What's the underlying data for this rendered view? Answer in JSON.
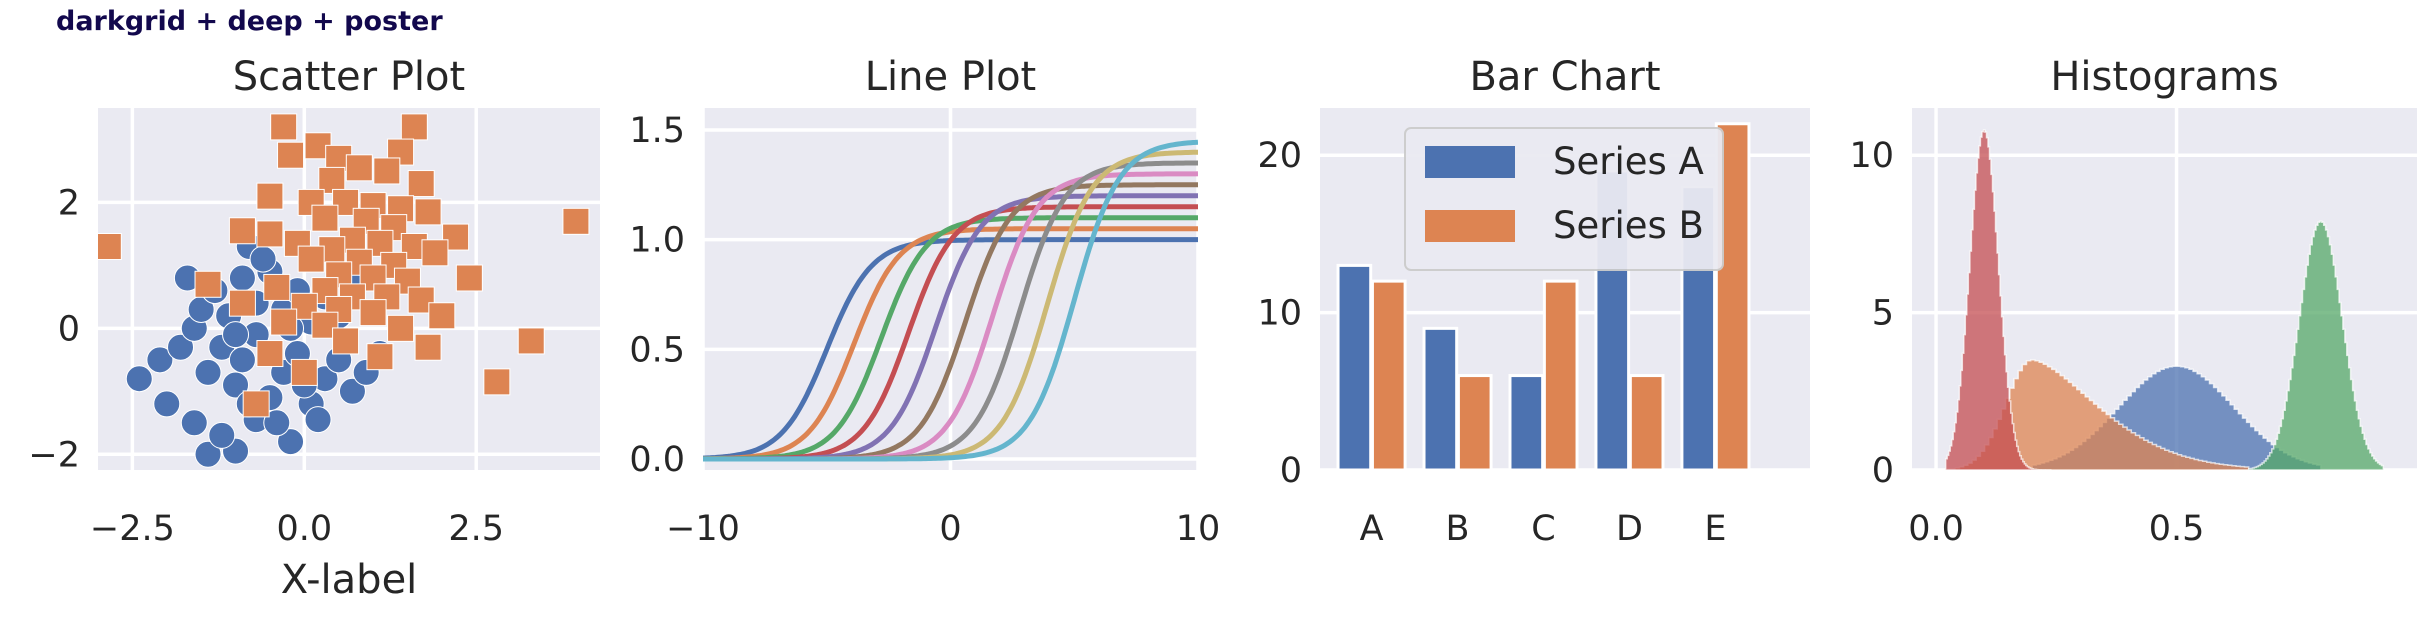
{
  "figure_title": "darkgrid + deep + poster",
  "colors": {
    "background": "#eaeaf2",
    "grid": "#ffffff",
    "blue": "#4c72b0",
    "orange": "#dd8452",
    "green": "#55a868",
    "red": "#c44e52",
    "purple": "#8172b3",
    "brown": "#937860",
    "pink": "#da8bc3",
    "gray": "#8c8c8c",
    "olive": "#ccb974",
    "cyan": "#64b5cd"
  },
  "chart_data": [
    {
      "type": "scatter",
      "title": "Scatter Plot",
      "xlabel": "X-label",
      "ylabel": "",
      "xlim": [
        -3.0,
        4.3
      ],
      "ylim": [
        -2.25,
        3.5
      ],
      "xticks": [
        -2.5,
        0.0,
        2.5
      ],
      "xtick_labels": [
        "−2.5",
        "0.0",
        "2.5"
      ],
      "yticks": [
        -2,
        0,
        2
      ],
      "ytick_labels": [
        "−2",
        "0",
        "2"
      ],
      "grid": true,
      "series": [
        {
          "marker": "circle",
          "color": "blue",
          "points": [
            [
              -1.4,
              -2.0
            ],
            [
              -1.0,
              -1.95
            ],
            [
              -0.2,
              -1.8
            ],
            [
              -1.2,
              -1.7
            ],
            [
              -1.6,
              -1.5
            ],
            [
              -0.7,
              -1.45
            ],
            [
              -2.4,
              -0.8
            ],
            [
              -2.0,
              -1.2
            ],
            [
              -2.1,
              -0.5
            ],
            [
              -1.8,
              -0.3
            ],
            [
              -1.6,
              0.0
            ],
            [
              -1.4,
              -0.7
            ],
            [
              -1.2,
              -0.3
            ],
            [
              -1.0,
              -0.9
            ],
            [
              -0.9,
              -0.5
            ],
            [
              -0.7,
              -0.1
            ],
            [
              -0.5,
              -1.1
            ],
            [
              -0.3,
              -0.7
            ],
            [
              -0.1,
              -0.4
            ],
            [
              0.1,
              -1.2
            ],
            [
              0.3,
              -0.8
            ],
            [
              0.5,
              -0.5
            ],
            [
              0.7,
              -1.0
            ],
            [
              0.9,
              -0.7
            ],
            [
              1.1,
              -0.4
            ],
            [
              -1.5,
              0.3
            ],
            [
              -1.3,
              0.6
            ],
            [
              -1.1,
              0.2
            ],
            [
              -0.9,
              0.8
            ],
            [
              -0.7,
              0.4
            ],
            [
              -0.5,
              0.9
            ],
            [
              -0.3,
              0.3
            ],
            [
              -0.1,
              0.6
            ],
            [
              0.1,
              0.1
            ],
            [
              0.3,
              0.5
            ],
            [
              0.5,
              0.2
            ],
            [
              0.7,
              0.8
            ],
            [
              -0.8,
              1.3
            ],
            [
              -0.6,
              1.1
            ],
            [
              -1.7,
              0.8
            ],
            [
              -0.4,
              -1.5
            ],
            [
              0.0,
              -0.9
            ],
            [
              0.2,
              -1.45
            ],
            [
              -0.8,
              -1.2
            ],
            [
              -0.2,
              0.0
            ],
            [
              -1.0,
              -0.1
            ]
          ]
        },
        {
          "marker": "square",
          "color": "orange",
          "points": [
            [
              -2.85,
              1.3
            ],
            [
              3.95,
              1.7
            ],
            [
              1.6,
              3.2
            ],
            [
              -0.3,
              3.2
            ],
            [
              0.2,
              2.9
            ],
            [
              1.4,
              2.8
            ],
            [
              -0.2,
              2.75
            ],
            [
              0.5,
              2.7
            ],
            [
              0.8,
              2.55
            ],
            [
              1.2,
              2.5
            ],
            [
              0.4,
              2.35
            ],
            [
              1.7,
              2.3
            ],
            [
              -0.5,
              2.1
            ],
            [
              0.1,
              2.0
            ],
            [
              0.6,
              2.0
            ],
            [
              1.0,
              1.95
            ],
            [
              1.4,
              1.9
            ],
            [
              1.8,
              1.85
            ],
            [
              0.3,
              1.75
            ],
            [
              0.9,
              1.7
            ],
            [
              1.3,
              1.6
            ],
            [
              -0.9,
              1.55
            ],
            [
              -0.5,
              1.5
            ],
            [
              2.2,
              1.45
            ],
            [
              0.7,
              1.4
            ],
            [
              1.1,
              1.35
            ],
            [
              1.6,
              1.3
            ],
            [
              -0.1,
              1.35
            ],
            [
              0.4,
              1.25
            ],
            [
              1.9,
              1.2
            ],
            [
              0.1,
              1.1
            ],
            [
              0.8,
              1.05
            ],
            [
              1.3,
              1.0
            ],
            [
              2.4,
              0.8
            ],
            [
              0.5,
              0.85
            ],
            [
              1.0,
              0.8
            ],
            [
              1.5,
              0.75
            ],
            [
              -1.4,
              0.7
            ],
            [
              -0.4,
              0.65
            ],
            [
              0.3,
              0.6
            ],
            [
              0.7,
              0.5
            ],
            [
              1.2,
              0.5
            ],
            [
              1.7,
              0.45
            ],
            [
              -0.9,
              0.4
            ],
            [
              0.0,
              0.35
            ],
            [
              0.5,
              0.3
            ],
            [
              1.0,
              0.25
            ],
            [
              2.0,
              0.2
            ],
            [
              -0.3,
              0.1
            ],
            [
              0.3,
              0.05
            ],
            [
              1.4,
              0.0
            ],
            [
              3.3,
              -0.2
            ],
            [
              0.6,
              -0.2
            ],
            [
              1.8,
              -0.3
            ],
            [
              -0.5,
              -0.4
            ],
            [
              1.1,
              -0.45
            ],
            [
              0.0,
              -0.7
            ],
            [
              2.8,
              -0.85
            ],
            [
              -0.7,
              -1.2
            ]
          ]
        }
      ]
    },
    {
      "type": "line",
      "title": "Line Plot",
      "xlabel": "",
      "ylabel": "",
      "xlim": [
        -10,
        10
      ],
      "ylim": [
        -0.05,
        1.6
      ],
      "xticks": [
        -10,
        0,
        10
      ],
      "xtick_labels": [
        "−10",
        "0",
        "10"
      ],
      "yticks": [
        0.0,
        0.5,
        1.0,
        1.5
      ],
      "ytick_labels": [
        "0.0",
        "0.5",
        "1.0",
        "1.5"
      ],
      "grid": true,
      "function": "sigmoid",
      "series": [
        {
          "color": "blue",
          "amplitude": 1.0,
          "center": -5.0
        },
        {
          "color": "orange",
          "amplitude": 1.05,
          "center": -3.9
        },
        {
          "color": "green",
          "amplitude": 1.1,
          "center": -2.8
        },
        {
          "color": "red",
          "amplitude": 1.15,
          "center": -1.7
        },
        {
          "color": "purple",
          "amplitude": 1.2,
          "center": -0.6
        },
        {
          "color": "brown",
          "amplitude": 1.25,
          "center": 0.6
        },
        {
          "color": "pink",
          "amplitude": 1.3,
          "center": 1.7
        },
        {
          "color": "gray",
          "amplitude": 1.35,
          "center": 2.8
        },
        {
          "color": "olive",
          "amplitude": 1.4,
          "center": 3.9
        },
        {
          "color": "cyan",
          "amplitude": 1.45,
          "center": 5.0
        }
      ]
    },
    {
      "type": "bar",
      "title": "Bar Chart",
      "xlabel": "",
      "ylabel": "",
      "categories": [
        "A",
        "B",
        "C",
        "D",
        "E"
      ],
      "ylim": [
        0,
        23
      ],
      "yticks": [
        0,
        10,
        20
      ],
      "ytick_labels": [
        "0",
        "10",
        "20"
      ],
      "grid": true,
      "legend_position": "top-center",
      "series": [
        {
          "name": "Series A",
          "color": "blue",
          "values": [
            13,
            9,
            6,
            19,
            18
          ]
        },
        {
          "name": "Series B",
          "color": "orange",
          "values": [
            12,
            6,
            12,
            6,
            22
          ]
        }
      ]
    },
    {
      "type": "histogram",
      "title": "Histograms",
      "xlabel": "",
      "ylabel": "",
      "xlim": [
        -0.05,
        1.0
      ],
      "ylim": [
        0,
        11.5
      ],
      "xticks": [
        0.0,
        0.5
      ],
      "xtick_labels": [
        "0.0",
        "0.5"
      ],
      "yticks": [
        0,
        5,
        10
      ],
      "ytick_labels": [
        "0",
        "5",
        "10"
      ],
      "grid": true,
      "series": [
        {
          "color": "blue",
          "distribution": "normal",
          "mean": 0.5,
          "sd": 0.12,
          "peak": 3.3,
          "range": [
            0.2,
            0.8
          ]
        },
        {
          "color": "orange",
          "distribution": "skewed",
          "mode": 0.2,
          "peak": 3.5,
          "range": [
            0.04,
            0.65
          ]
        },
        {
          "color": "red",
          "distribution": "normal",
          "mean": 0.1,
          "sd": 0.03,
          "peak": 10.8,
          "range": [
            0.02,
            0.24
          ]
        },
        {
          "color": "green",
          "distribution": "normal",
          "mean": 0.8,
          "sd": 0.045,
          "peak": 7.9,
          "range": [
            0.65,
            0.93
          ]
        }
      ]
    }
  ]
}
